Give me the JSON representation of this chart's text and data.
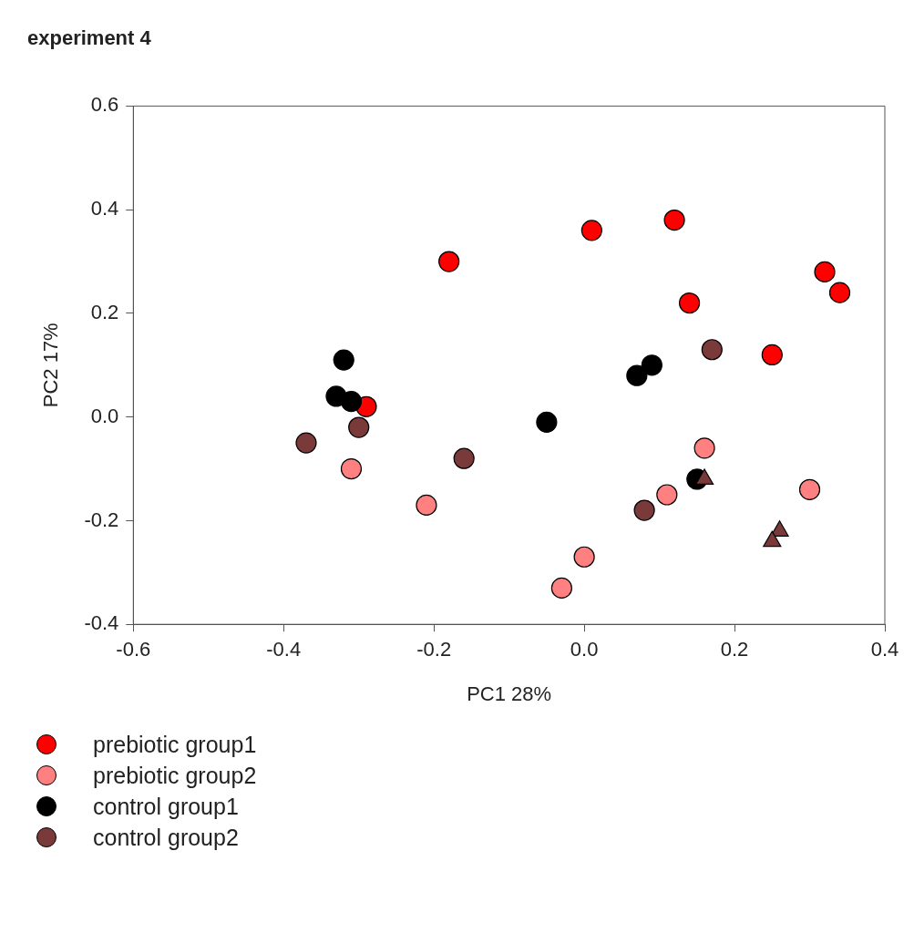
{
  "chart_data": {
    "type": "scatter",
    "title": "experiment 4",
    "xlabel": "PC1 28%",
    "ylabel": "PC2 17%",
    "xlim": [
      -0.6,
      0.4
    ],
    "ylim": [
      -0.4,
      0.6
    ],
    "xticks": [
      {
        "value": -0.6,
        "label": "-0.6"
      },
      {
        "value": -0.4,
        "label": "-0.4"
      },
      {
        "value": -0.2,
        "label": "-0.2"
      },
      {
        "value": 0,
        "label": "0.0"
      },
      {
        "value": 0.2,
        "label": "0.2"
      },
      {
        "value": 0.4,
        "label": "0.4"
      }
    ],
    "yticks": [
      {
        "value": -0.4,
        "label": "-0.4"
      },
      {
        "value": -0.2,
        "label": "-0.2"
      },
      {
        "value": 0,
        "label": "0.0"
      },
      {
        "value": 0.2,
        "label": "0.2"
      },
      {
        "value": 0.4,
        "label": "0.4"
      },
      {
        "value": 0.6,
        "label": "0.6"
      }
    ],
    "grid": false,
    "legend": "bottom left",
    "marker": "circle",
    "series": [
      {
        "name": "prebiotic group1",
        "color": "#ff0000",
        "x": [
          -0.18,
          0.01,
          0.12,
          0.14,
          0.32,
          0.34,
          0.25,
          -0.29
        ],
        "values": [
          0.3,
          0.36,
          0.38,
          0.22,
          0.28,
          0.24,
          0.12,
          0.02
        ]
      },
      {
        "name": "prebiotic group2",
        "color": "#ff8080",
        "x": [
          -0.31,
          -0.21,
          0.0,
          -0.03,
          0.11,
          0.16,
          0.3
        ],
        "values": [
          -0.1,
          -0.17,
          -0.27,
          -0.33,
          -0.15,
          -0.06,
          -0.14
        ]
      },
      {
        "name": "control group1",
        "color": "#000000",
        "x": [
          -0.32,
          -0.33,
          -0.31,
          -0.05,
          0.07,
          0.09,
          0.15
        ],
        "values": [
          0.11,
          0.04,
          0.03,
          -0.01,
          0.08,
          0.1,
          -0.12
        ]
      },
      {
        "name": "control group2",
        "color": "#7b3a3a",
        "x": [
          -0.37,
          -0.3,
          -0.16,
          0.08,
          0.17
        ],
        "values": [
          -0.05,
          -0.02,
          -0.08,
          -0.18,
          0.13
        ]
      },
      {
        "color": "#7b3a3a",
        "marker": "triangle",
        "x": [
          0.16,
          0.26,
          0.25
        ],
        "values": [
          -0.12,
          -0.22,
          -0.24
        ]
      }
    ]
  }
}
